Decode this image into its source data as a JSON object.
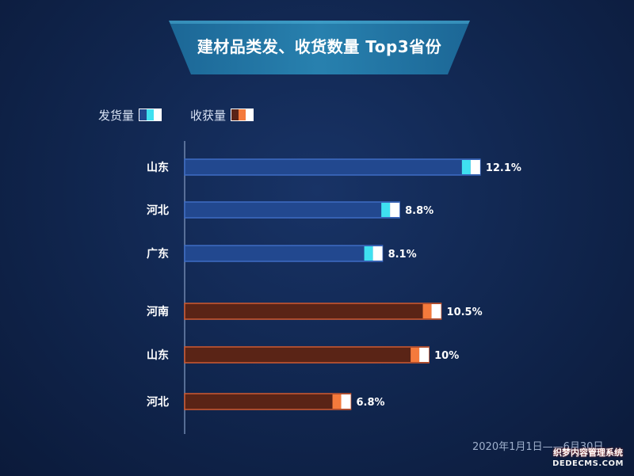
{
  "title": "建材品类发、收货数量 Top3省份",
  "legend": [
    {
      "label": "发货量",
      "series": "ship"
    },
    {
      "label": "收获量",
      "series": "receive"
    }
  ],
  "date_range": "2020年1月1日——6月30日",
  "watermark": {
    "line1": "织梦内容管理系统",
    "line2": "DEDECMS.COM"
  },
  "colors": {
    "ship_fill": "#22488f",
    "ship_border": "#3e6cc4",
    "ship_accent": "#3fe0f0",
    "receive_fill": "#5a2416",
    "receive_border": "#d05a30",
    "receive_accent": "#f47a3c",
    "cap": "#ffffff"
  },
  "chart_data": {
    "type": "bar",
    "orientation": "horizontal",
    "title": "建材品类发、收货数量 Top3省份",
    "groups": [
      {
        "name": "发货量",
        "series": "ship",
        "categories": [
          "山东",
          "河北",
          "广东"
        ],
        "values": [
          12.1,
          8.8,
          8.1
        ],
        "labels": [
          "12.1%",
          "8.8%",
          "8.1%"
        ]
      },
      {
        "name": "收获量",
        "series": "receive",
        "categories": [
          "河南",
          "山东",
          "河北"
        ],
        "values": [
          10.5,
          10,
          6.8
        ],
        "labels": [
          "10.5%",
          "10%",
          "6.8%"
        ]
      }
    ],
    "xlim": [
      0,
      12.3
    ],
    "grid": false
  }
}
